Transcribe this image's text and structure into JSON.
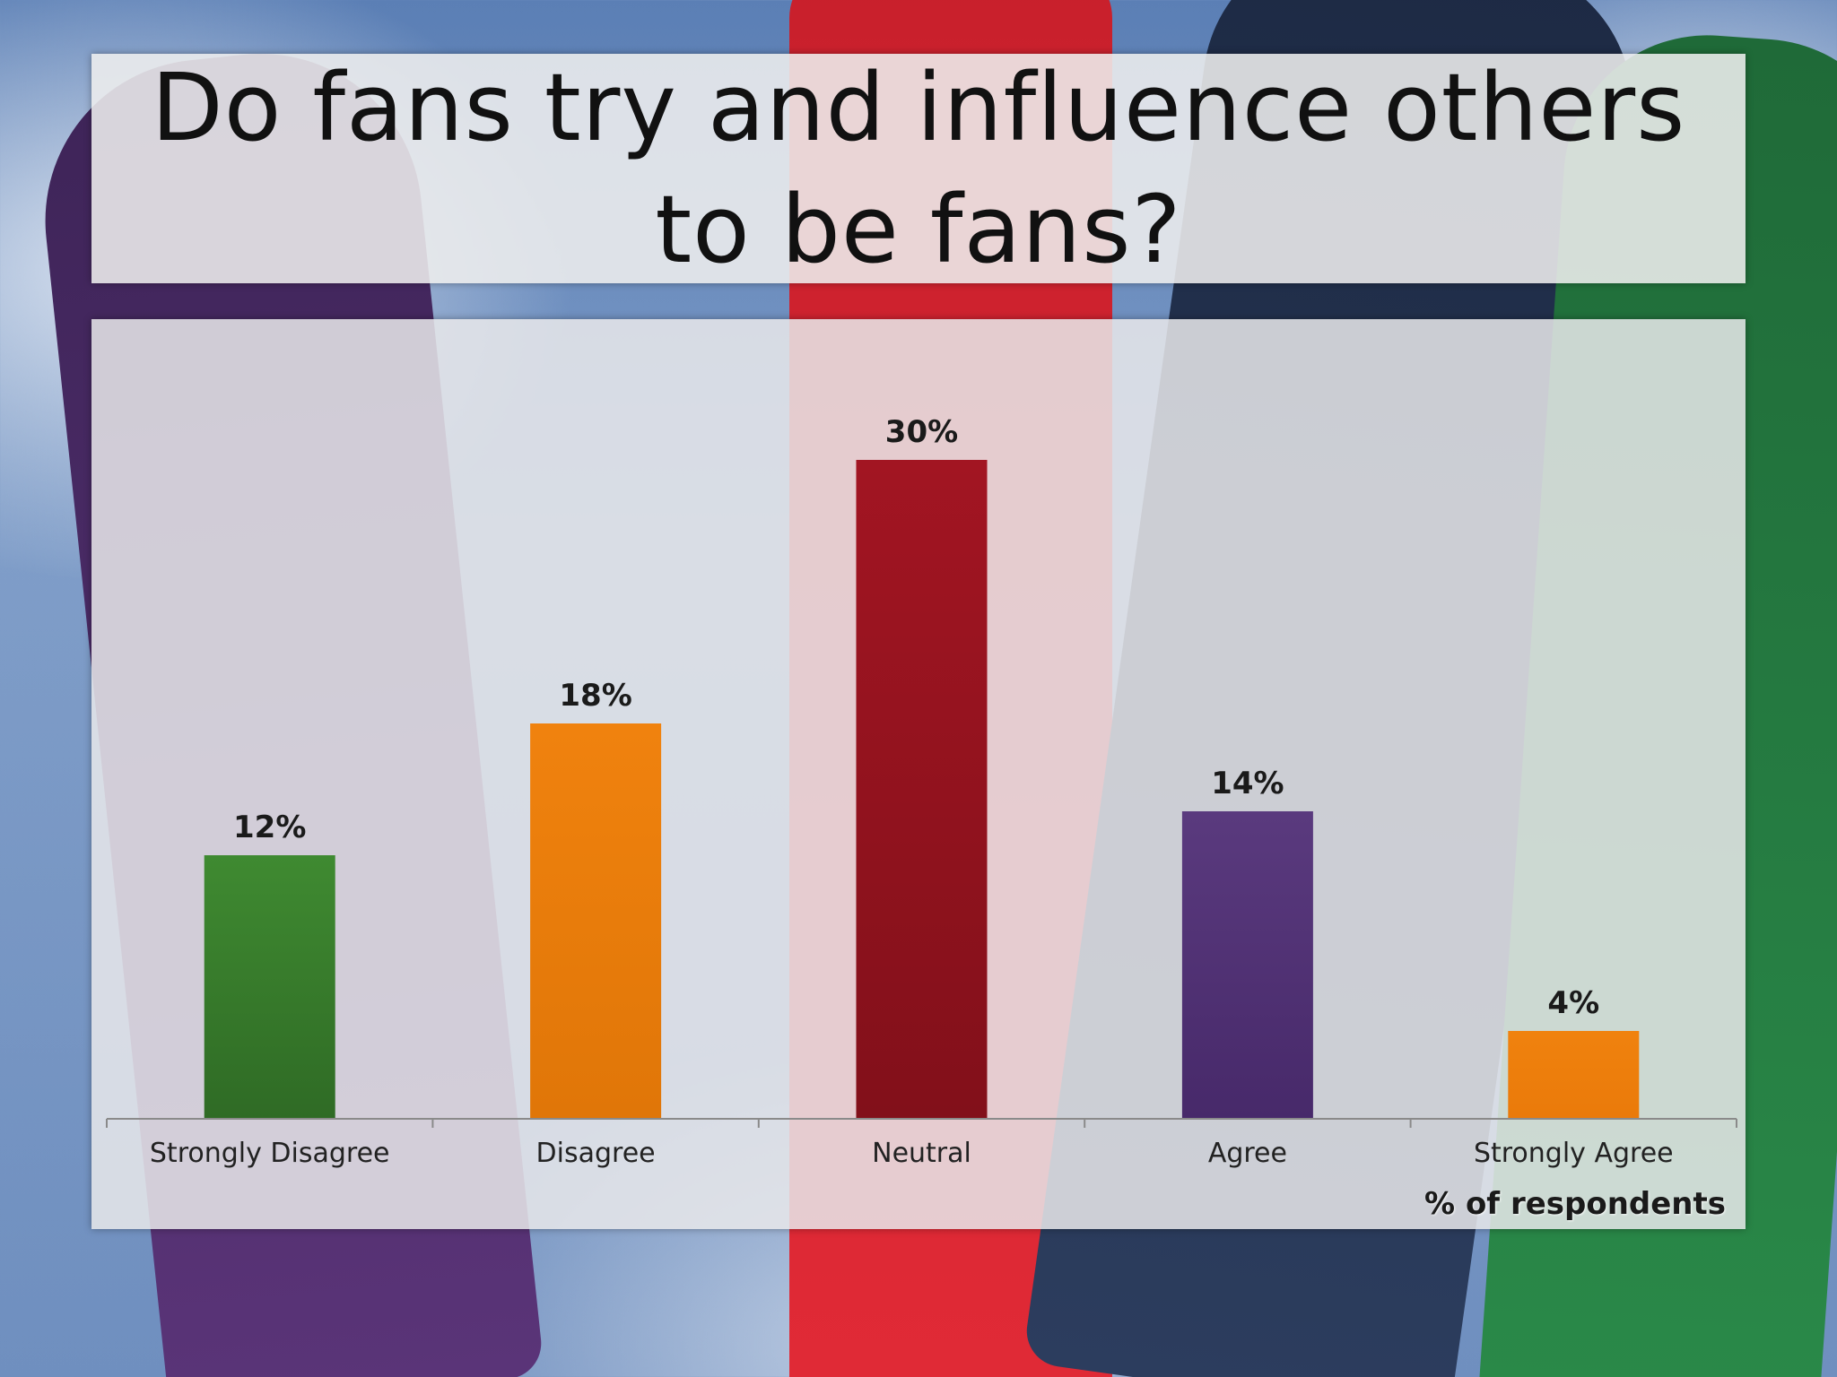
{
  "slide": {
    "title": "Do fans try and influence others to be fans?"
  },
  "chart_data": {
    "type": "bar",
    "title": "",
    "xlabel": "",
    "ylabel": "",
    "unit_note": "% of respondents",
    "ylim": [
      0,
      36
    ],
    "grid": false,
    "legend": "none",
    "categories": [
      "Strongly Disagree",
      "Disagree",
      "Neutral",
      "Agree",
      "Strongly Agree"
    ],
    "values": [
      12,
      18,
      30,
      14,
      4
    ],
    "data_labels": [
      "12%",
      "18%",
      "30%",
      "14%",
      "4%"
    ],
    "bar_colors": [
      "#3f8a31",
      "#f0820e",
      "#a21522",
      "#5a3a7e",
      "#f0820e"
    ],
    "bar_colors_dark": [
      "#2f6b25",
      "#e07608",
      "#82101a",
      "#47296a",
      "#ea7a0a"
    ]
  }
}
